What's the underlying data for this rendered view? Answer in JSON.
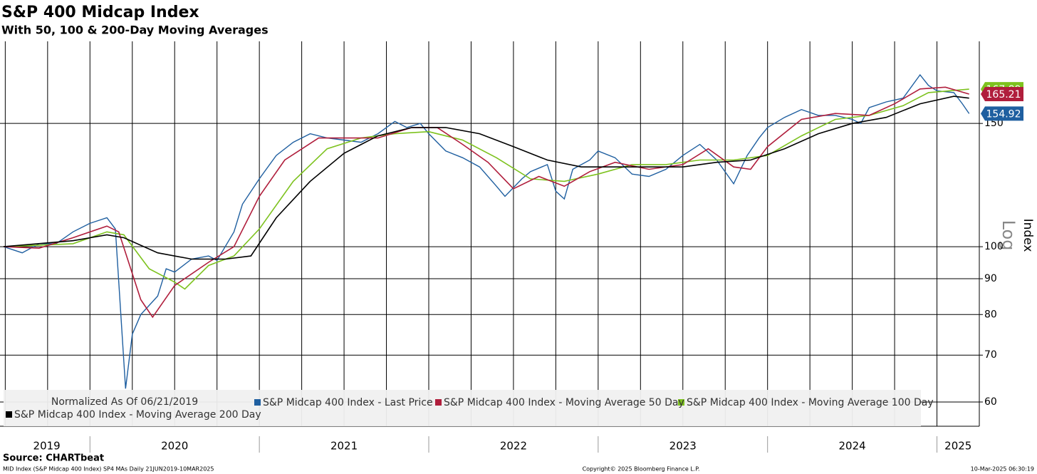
{
  "chart_data": {
    "type": "line",
    "title": "S&P 400 Midcap Index",
    "subtitle": "With 50, 100 & 200-Day Moving Averages",
    "y_label": "Index",
    "scale_label": "Log",
    "log_scale": true,
    "grid": true,
    "legend_note": "Normalized As Of 06/21/2019",
    "source": "Source: CHARTbeat",
    "footer_left": "MID Index (S&P Midcap 400 Index) SP4 MAs  Daily 21JUN2019-10MAR2025",
    "footer_center": "Copyright© 2025 Bloomberg Finance L.P.",
    "footer_right": "10-Mar-2025 06:30:19",
    "xlim": [
      2019.49,
      2025.25
    ],
    "xticks": [
      2019,
      2020,
      2021,
      2022,
      2023,
      2024,
      2025
    ],
    "ylim": [
      55.4,
      196.5
    ],
    "yticks": [
      60,
      70,
      80,
      90,
      100,
      150
    ],
    "series": [
      {
        "name": "S&P Midcap 400 Index - Last Price",
        "color": "#1f5fa0",
        "last_label": true,
        "x": [
          2019.49,
          2019.6,
          2019.7,
          2019.8,
          2019.9,
          2020.0,
          2020.1,
          2020.15,
          2020.21,
          2020.25,
          2020.3,
          2020.4,
          2020.45,
          2020.5,
          2020.6,
          2020.7,
          2020.75,
          2020.85,
          2020.9,
          2021.0,
          2021.1,
          2021.2,
          2021.3,
          2021.4,
          2021.5,
          2021.6,
          2021.7,
          2021.8,
          2021.87,
          2021.95,
          2022.0,
          2022.1,
          2022.2,
          2022.3,
          2022.4,
          2022.45,
          2022.55,
          2022.6,
          2022.7,
          2022.75,
          2022.8,
          2022.85,
          2022.95,
          2023.0,
          2023.1,
          2023.2,
          2023.3,
          2023.4,
          2023.5,
          2023.6,
          2023.7,
          2023.8,
          2023.88,
          2023.95,
          2024.0,
          2024.1,
          2024.2,
          2024.3,
          2024.4,
          2024.5,
          2024.55,
          2024.6,
          2024.7,
          2024.8,
          2024.9,
          2024.95,
          2025.0,
          2025.1,
          2025.15,
          2025.19
        ],
        "values": [
          100,
          98,
          101,
          101,
          105,
          108,
          110,
          106,
          62.7,
          75,
          80,
          85,
          93,
          92,
          96,
          97,
          95.6,
          105,
          115,
          125,
          135,
          141,
          145,
          143,
          142,
          141,
          145,
          151,
          148,
          150,
          145,
          137,
          134,
          130,
          122,
          118,
          125,
          128,
          131,
          120,
          117,
          129,
          133,
          137,
          134,
          127,
          126,
          129,
          135,
          140,
          133,
          123,
          135,
          143,
          148,
          153,
          157,
          154,
          154,
          152,
          150,
          158,
          161,
          163,
          176,
          170,
          167,
          166,
          160,
          154.92
        ]
      },
      {
        "name": "S&P Midcap 400 Index - Moving Average 100 Day",
        "color": "#7dc21e",
        "last_label": true,
        "x": [
          2019.49,
          2019.9,
          2020.1,
          2020.2,
          2020.35,
          2020.5,
          2020.56,
          2020.7,
          2020.85,
          2021.0,
          2021.2,
          2021.4,
          2021.6,
          2021.8,
          2022.0,
          2022.2,
          2022.4,
          2022.6,
          2022.8,
          2023.0,
          2023.2,
          2023.4,
          2023.6,
          2023.8,
          2024.0,
          2024.2,
          2024.4,
          2024.6,
          2024.8,
          2024.95,
          2025.19
        ],
        "values": [
          100,
          101,
          105,
          104,
          93,
          89,
          87,
          94,
          97,
          106,
          124,
          138,
          143,
          145,
          146,
          142,
          134,
          125,
          124,
          127,
          131,
          131,
          133,
          133,
          135,
          144,
          152,
          154,
          159,
          166,
          167.89
        ]
      },
      {
        "name": "S&P Midcap 400 Index - Moving Average 50 Day",
        "color": "#b01e3c",
        "last_label": true,
        "x": [
          2019.49,
          2019.7,
          2019.9,
          2020.1,
          2020.17,
          2020.3,
          2020.37,
          2020.5,
          2020.7,
          2020.85,
          2021.0,
          2021.15,
          2021.35,
          2021.5,
          2021.7,
          2021.9,
          2022.05,
          2022.2,
          2022.35,
          2022.5,
          2022.65,
          2022.8,
          2022.95,
          2023.1,
          2023.3,
          2023.5,
          2023.65,
          2023.8,
          2023.9,
          2024.0,
          2024.2,
          2024.4,
          2024.6,
          2024.75,
          2024.9,
          2025.05,
          2025.19
        ],
        "values": [
          100,
          99.5,
          103,
          107,
          105,
          84,
          79.3,
          88,
          95,
          100,
          118,
          133,
          143,
          143,
          143,
          148,
          148,
          140,
          132,
          121,
          126,
          122,
          128,
          132,
          129,
          131,
          138,
          130,
          129,
          139,
          152,
          155,
          154,
          160,
          168,
          169,
          165.21
        ]
      },
      {
        "name": "S&P Midcap 400 Index - Moving Average 200 Day",
        "color": "#000000",
        "last_label": false,
        "x": [
          2019.49,
          2019.9,
          2020.1,
          2020.2,
          2020.4,
          2020.6,
          2020.8,
          2020.95,
          2021.1,
          2021.3,
          2021.5,
          2021.7,
          2021.9,
          2022.1,
          2022.3,
          2022.5,
          2022.7,
          2022.9,
          2023.1,
          2023.3,
          2023.5,
          2023.7,
          2023.9,
          2024.1,
          2024.3,
          2024.5,
          2024.7,
          2024.9,
          2025.1,
          2025.19
        ],
        "values": [
          100,
          102,
          104,
          103,
          98,
          96,
          96,
          97,
          110,
          124,
          136,
          144,
          148,
          148,
          145,
          139,
          133,
          130,
          130,
          130,
          130,
          132,
          133,
          138,
          145,
          150,
          153,
          160,
          164,
          163
        ]
      }
    ]
  }
}
